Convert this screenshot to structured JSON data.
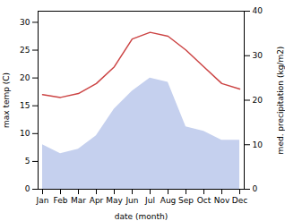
{
  "chart_data": {
    "type": "line",
    "categories": [
      "Jan",
      "Feb",
      "Mar",
      "Apr",
      "May",
      "Jun",
      "Jul",
      "Aug",
      "Sep",
      "Oct",
      "Nov",
      "Dec"
    ],
    "xlabel": "date (month)",
    "ylabel": "max temp (C)",
    "y2label": "med. precipitation (kg/m2)",
    "series": [
      {
        "type": "line",
        "color": "#cc4444",
        "values": [
          17.0,
          16.5,
          17.2,
          19.0,
          22.0,
          27.0,
          28.2,
          27.5,
          25.0,
          22.0,
          19.0,
          18.0
        ]
      },
      {
        "type": "area",
        "axis": "y2",
        "color": "#c5d0ee",
        "values": [
          10.0,
          8.0,
          9.0,
          12.0,
          18.0,
          22.0,
          25.0,
          24.0,
          14.0,
          13.0,
          11.0,
          11.0
        ]
      }
    ],
    "ylim": [
      0,
      32
    ],
    "yticks": [
      0,
      5,
      10,
      15,
      20,
      25,
      30
    ],
    "y2lim": [
      0,
      40
    ],
    "y2ticks": [
      0,
      10,
      20,
      30,
      40
    ]
  }
}
